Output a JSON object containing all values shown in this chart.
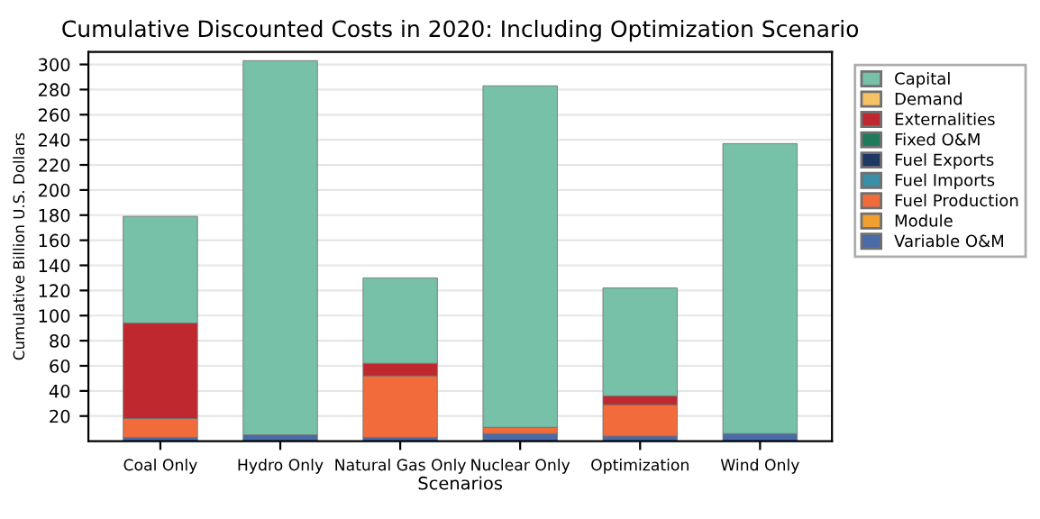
{
  "chart_data": {
    "type": "bar",
    "title": "Cumulative Discounted Costs in 2020: Including Optimization Scenario",
    "xlabel": "Scenarios",
    "ylabel": "Cumulative Billion U.S. Dollars",
    "categories": [
      "Coal Only",
      "Hydro Only",
      "Natural Gas Only",
      "Nuclear Only",
      "Optimization",
      "Wind Only"
    ],
    "stacked": true,
    "ylim": [
      0,
      310
    ],
    "yticks": [
      20,
      40,
      60,
      80,
      100,
      120,
      140,
      160,
      180,
      200,
      220,
      240,
      260,
      280,
      300
    ],
    "grid": "y",
    "legend": "right",
    "series": [
      {
        "name": "Variable O&M",
        "color": "#4a6aa8",
        "values": [
          3,
          5,
          3,
          6,
          4,
          6
        ]
      },
      {
        "name": "Module",
        "color": "#f0a030",
        "values": [
          0,
          0,
          0,
          0,
          0,
          0
        ]
      },
      {
        "name": "Fuel Production",
        "color": "#f26b3a",
        "values": [
          15,
          0,
          49,
          5,
          25,
          0
        ]
      },
      {
        "name": "Fuel Imports",
        "color": "#3a8ea5",
        "values": [
          0,
          0,
          0,
          0,
          0,
          0
        ]
      },
      {
        "name": "Fuel Exports",
        "color": "#1f3864",
        "values": [
          0,
          0,
          0,
          0,
          0,
          0
        ]
      },
      {
        "name": "Fixed O&M",
        "color": "#1f7a5c",
        "values": [
          0,
          0,
          0,
          0,
          0,
          0
        ]
      },
      {
        "name": "Externalities",
        "color": "#c0282f",
        "values": [
          76,
          0,
          10,
          0,
          7,
          0
        ]
      },
      {
        "name": "Demand",
        "color": "#f5c266",
        "values": [
          0,
          0,
          0,
          0,
          0,
          0
        ]
      },
      {
        "name": "Capital",
        "color": "#76c1a8",
        "values": [
          85,
          298,
          68,
          272,
          86,
          231
        ]
      }
    ]
  }
}
